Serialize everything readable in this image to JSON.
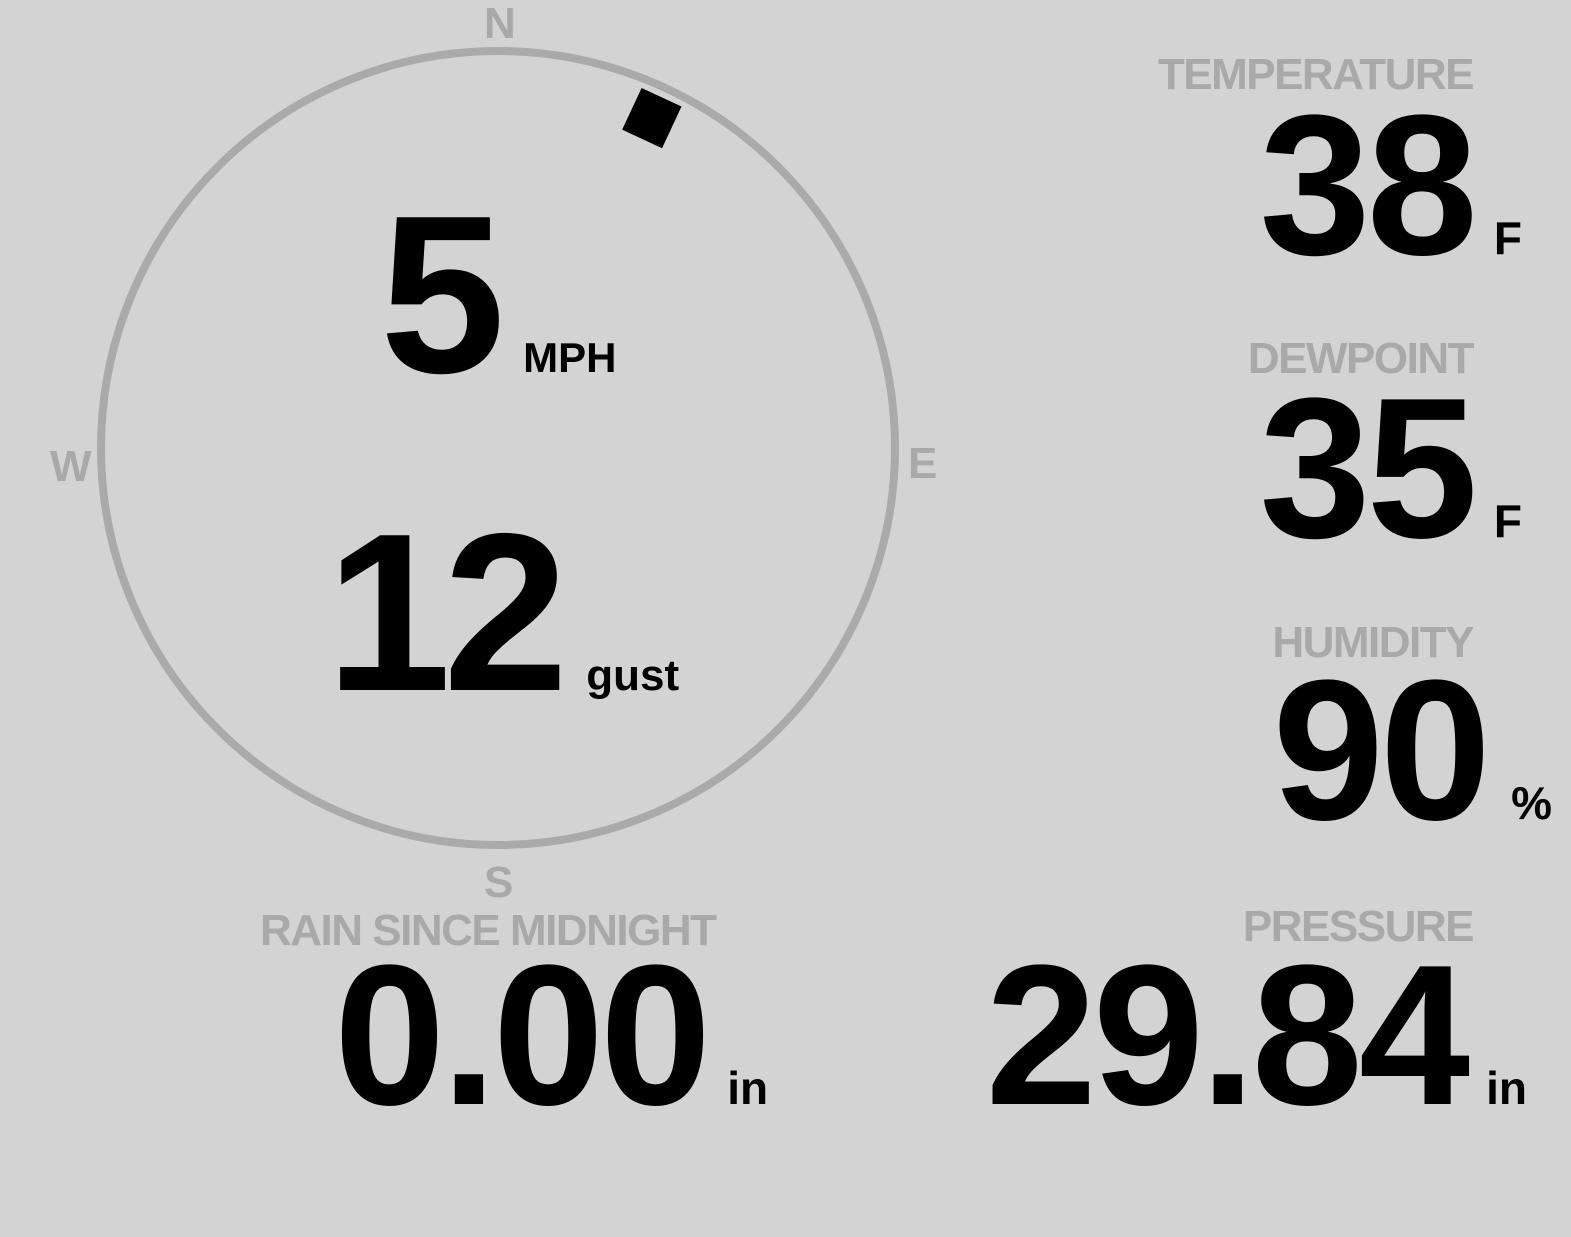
{
  "colors": {
    "background": "#d3d3d3",
    "label": "#a9a9a9",
    "value": "#000000",
    "ring": "#aaaaaa"
  },
  "wind": {
    "compass": {
      "north": "N",
      "east": "E",
      "south": "S",
      "west": "W"
    },
    "direction_deg": 25,
    "speed": "5",
    "speed_unit": "MPH",
    "gust": "12",
    "gust_unit": "gust"
  },
  "temperature": {
    "label": "TEMPERATURE",
    "value": "38",
    "unit": "F"
  },
  "dewpoint": {
    "label": "DEWPOINT",
    "value": "35",
    "unit": "F"
  },
  "humidity": {
    "label": "HUMIDITY",
    "value": "90",
    "unit": "%"
  },
  "rain": {
    "label": "RAIN SINCE MIDNIGHT",
    "value": "0.00",
    "unit": "in"
  },
  "pressure": {
    "label": "PRESSURE",
    "value": "29.84",
    "unit": "in"
  }
}
